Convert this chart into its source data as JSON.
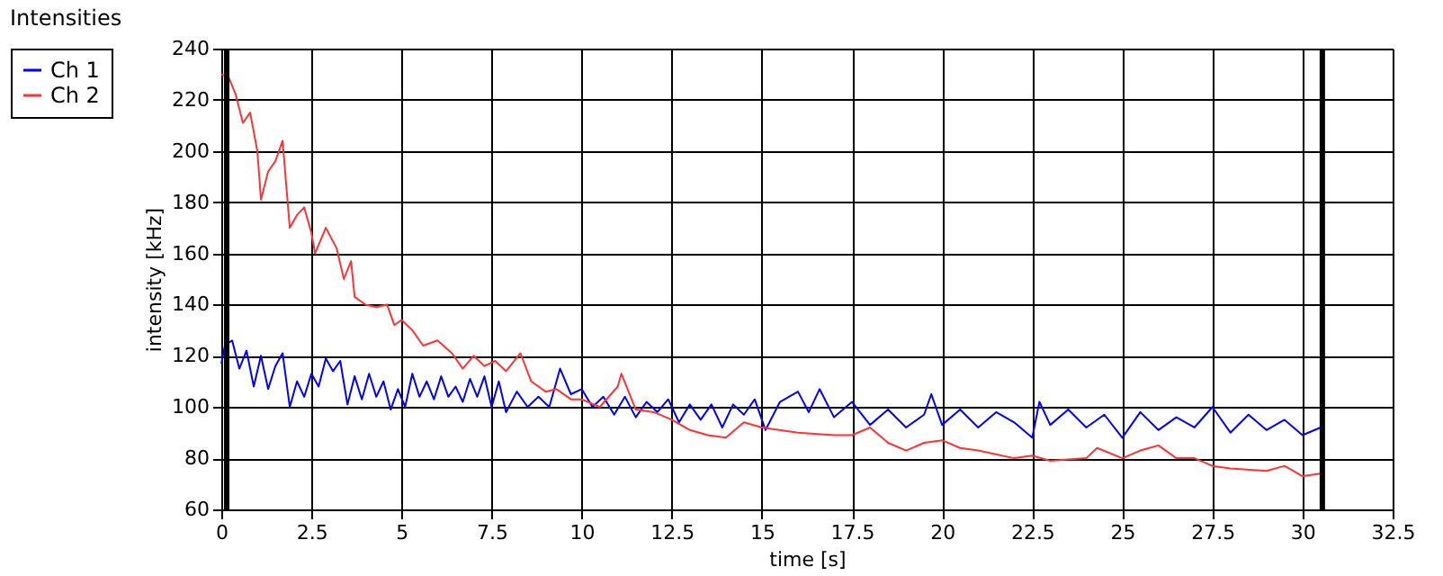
{
  "chart_data": {
    "type": "line",
    "title": "Intensities",
    "xlabel": "time [s]",
    "ylabel": "intensity [kHz]",
    "xlim": [
      0,
      32.5
    ],
    "xticks": [
      0,
      2.5,
      5,
      7.5,
      10,
      12.5,
      15,
      17.5,
      20,
      22.5,
      25,
      27.5,
      30,
      32.5
    ],
    "ylim": [
      60,
      240
    ],
    "yticks": [
      60,
      80,
      100,
      120,
      140,
      160,
      180,
      200,
      220,
      240
    ],
    "grid": true,
    "legend": "top left",
    "marker": "none",
    "line_style": "solid",
    "ref_lines": [
      {
        "axis": "x",
        "value": 0.15,
        "color": "#000000"
      },
      {
        "axis": "x",
        "value": 30.55,
        "color": "#000000"
      }
    ],
    "series": [
      {
        "name": "Ch 1",
        "color": "#0000ff",
        "x": [
          0,
          0.1,
          0.3,
          0.5,
          0.7,
          0.9,
          1.1,
          1.3,
          1.5,
          1.7,
          1.9,
          2.1,
          2.3,
          2.5,
          2.7,
          2.9,
          3.1,
          3.3,
          3.5,
          3.7,
          3.9,
          4.1,
          4.3,
          4.5,
          4.7,
          4.9,
          5.1,
          5.3,
          5.5,
          5.7,
          5.9,
          6.1,
          6.3,
          6.5,
          6.7,
          6.9,
          7.1,
          7.3,
          7.5,
          7.7,
          7.9,
          8.2,
          8.5,
          8.8,
          9.1,
          9.4,
          9.7,
          10,
          10.3,
          10.6,
          10.9,
          11.2,
          11.5,
          11.8,
          12.1,
          12.4,
          12.7,
          13,
          13.3,
          13.6,
          13.9,
          14.2,
          14.5,
          14.8,
          15.1,
          15.5,
          16,
          16.3,
          16.6,
          17,
          17.5,
          18,
          18.5,
          19,
          19.5,
          19.7,
          20,
          20.5,
          21,
          21.5,
          22,
          22.5,
          22.7,
          23,
          23.5,
          24,
          24.5,
          25,
          25.5,
          26,
          26.5,
          27,
          27.5,
          28,
          28.5,
          29,
          29.5,
          30,
          30.5
        ],
        "values": [
          117,
          124,
          126,
          115,
          122,
          108,
          120,
          107,
          116,
          121,
          100,
          110,
          104,
          113,
          108,
          119,
          114,
          118,
          101,
          112,
          103,
          113,
          104,
          110,
          99,
          107,
          100,
          113,
          104,
          110,
          103,
          112,
          104,
          108,
          102,
          111,
          104,
          112,
          100,
          110,
          98,
          106,
          100,
          104,
          100,
          115,
          105,
          107,
          100,
          104,
          97,
          104,
          96,
          102,
          98,
          103,
          94,
          101,
          95,
          101,
          92,
          101,
          97,
          103,
          91,
          102,
          106,
          98,
          107,
          96,
          102,
          93,
          99,
          92,
          97,
          105,
          93,
          99,
          92,
          98,
          94,
          88,
          102,
          93,
          99,
          92,
          97,
          88,
          98,
          91,
          96,
          92,
          100,
          90,
          97,
          91,
          95,
          89,
          92
        ]
      },
      {
        "name": "Ch 2",
        "color": "#ff3333",
        "x": [
          0,
          0.2,
          0.4,
          0.6,
          0.8,
          1.0,
          1.1,
          1.3,
          1.5,
          1.7,
          1.9,
          2.1,
          2.3,
          2.5,
          2.6,
          2.9,
          3.2,
          3.4,
          3.6,
          3.7,
          4.0,
          4.3,
          4.6,
          4.8,
          5.0,
          5.3,
          5.6,
          6.0,
          6.4,
          6.7,
          7.0,
          7.3,
          7.6,
          7.9,
          8.3,
          8.6,
          9.0,
          9.3,
          9.7,
          10.0,
          10.5,
          11.0,
          11.1,
          11.5,
          12.0,
          12.5,
          13.0,
          13.5,
          14.0,
          14.5,
          15,
          16,
          17,
          17.5,
          18,
          18.5,
          19,
          19.5,
          20,
          20.5,
          21,
          22,
          22.5,
          23,
          24,
          24.3,
          25,
          25.5,
          26,
          26.5,
          27,
          27.5,
          28,
          29,
          29.5,
          30,
          30.5
        ],
        "values": [
          230,
          229,
          222,
          211,
          215,
          200,
          181,
          192,
          196,
          204,
          170,
          175,
          178,
          168,
          160,
          170,
          162,
          150,
          157,
          143,
          140,
          139,
          140,
          132,
          134,
          130,
          124,
          126,
          121,
          115,
          120,
          116,
          118,
          114,
          121,
          110,
          106,
          107,
          103,
          103,
          100,
          108,
          113,
          99,
          98,
          95,
          91,
          89,
          88,
          94,
          92,
          90,
          89,
          89,
          92,
          86,
          83,
          86,
          87,
          84,
          83,
          80,
          81,
          79,
          80,
          84,
          80,
          83,
          85,
          80,
          80,
          77,
          76,
          75,
          77,
          73,
          74
        ]
      }
    ]
  }
}
